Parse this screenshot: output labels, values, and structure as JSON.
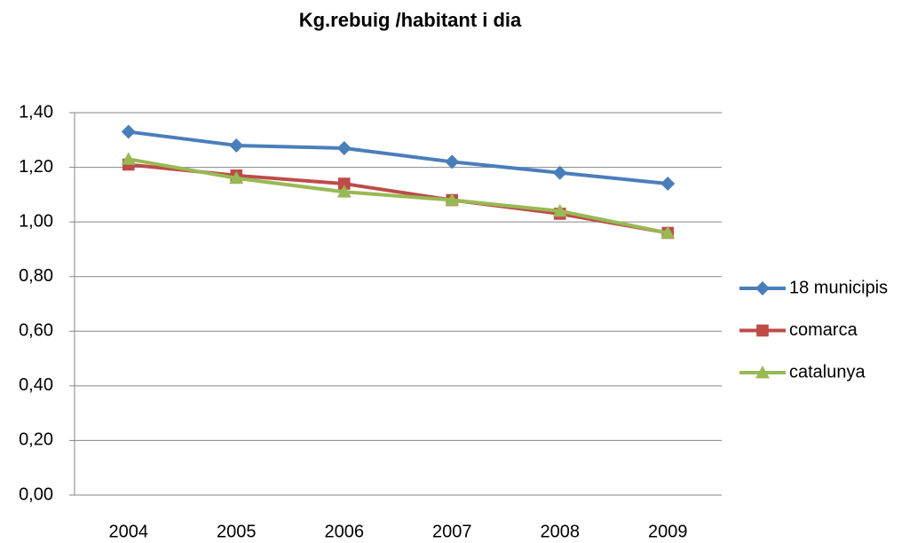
{
  "chart_data": {
    "type": "line",
    "title": "Kg.rebuig /habitant i dia",
    "categories": [
      "2004",
      "2005",
      "2006",
      "2007",
      "2008",
      "2009"
    ],
    "series": [
      {
        "name": "18 municipis",
        "color": "#4a7ebb",
        "marker": "diamond",
        "values": [
          1.33,
          1.28,
          1.27,
          1.22,
          1.18,
          1.14
        ]
      },
      {
        "name": "comarca",
        "color": "#be4b48",
        "marker": "square",
        "values": [
          1.21,
          1.17,
          1.14,
          1.08,
          1.03,
          0.96
        ]
      },
      {
        "name": "catalunya",
        "color": "#98b954",
        "marker": "triangle",
        "values": [
          1.23,
          1.16,
          1.11,
          1.08,
          1.04,
          0.96
        ]
      }
    ],
    "ylim": [
      0,
      1.4
    ],
    "yticks": [
      {
        "value": 0,
        "label": "0,00"
      },
      {
        "value": 0.2,
        "label": "0,20"
      },
      {
        "value": 0.4,
        "label": "0,40"
      },
      {
        "value": 0.6,
        "label": "0,60"
      },
      {
        "value": 0.8,
        "label": "0,80"
      },
      {
        "value": 1.0,
        "label": "1,00"
      },
      {
        "value": 1.2,
        "label": "1,20"
      },
      {
        "value": 1.4,
        "label": "1,40"
      }
    ],
    "grid": true,
    "legend": "right"
  }
}
